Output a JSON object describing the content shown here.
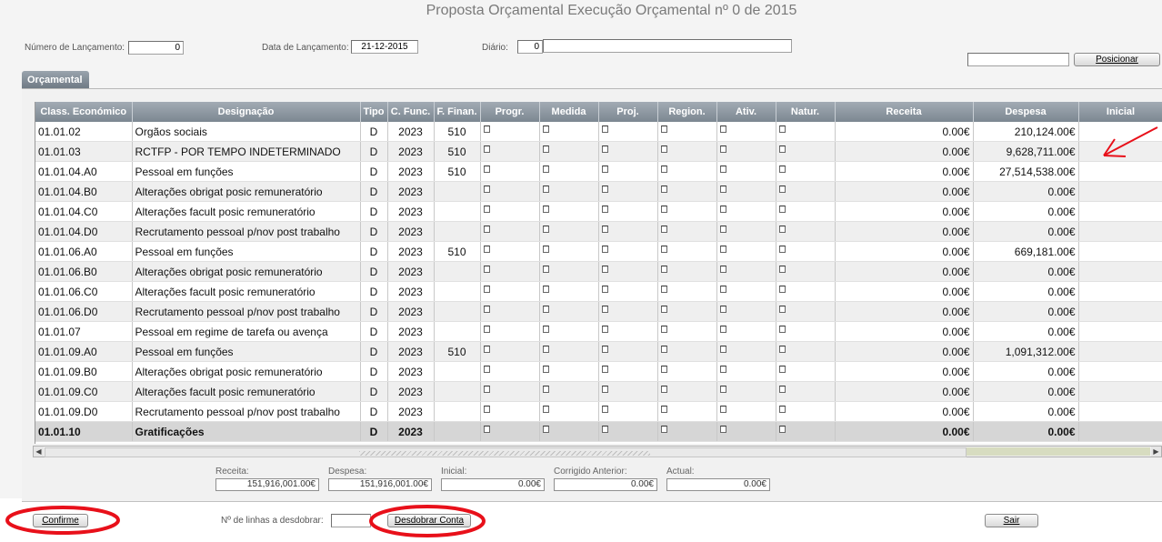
{
  "window": {
    "title": "Proposta Orçamental Execução Orçamental nº 0 de 2015"
  },
  "header": {
    "numero_label": "Número de Lançamento:",
    "numero_value": "0",
    "data_label": "Data de Lançamento:",
    "data_value": "21-12-2015",
    "diario_label": "Diário:",
    "diario_value": "0",
    "diario_desc": "",
    "position_input": "",
    "position_button": "Posicionar"
  },
  "tabs": [
    {
      "label": "Orçamental"
    }
  ],
  "grid": {
    "columns": [
      "Class. Económico",
      "Designação",
      "Tipo",
      "C. Func.",
      "F. Finan.",
      "Progr.",
      "Medida",
      "Proj.",
      "Region.",
      "Ativ.",
      "Natur.",
      "Receita",
      "Despesa",
      "Inicial"
    ],
    "rows": [
      {
        "code": "01.01.02",
        "desc": "Orgãos sociais",
        "tipo": "D",
        "func": "2023",
        "finan": "510",
        "receita": "0.00€",
        "despesa": "210,124.00€"
      },
      {
        "code": "01.01.03",
        "desc": "RCTFP - POR TEMPO INDETERMINADO",
        "tipo": "D",
        "func": "2023",
        "finan": "510",
        "receita": "0.00€",
        "despesa": "9,628,711.00€"
      },
      {
        "code": "01.01.04.A0",
        "desc": "Pessoal em funções",
        "tipo": "D",
        "func": "2023",
        "finan": "510",
        "receita": "0.00€",
        "despesa": "27,514,538.00€"
      },
      {
        "code": "01.01.04.B0",
        "desc": "Alterações obrigat posic remuneratório",
        "tipo": "D",
        "func": "2023",
        "finan": "",
        "receita": "0.00€",
        "despesa": "0.00€"
      },
      {
        "code": "01.01.04.C0",
        "desc": "Alterações facult posic remuneratório",
        "tipo": "D",
        "func": "2023",
        "finan": "",
        "receita": "0.00€",
        "despesa": "0.00€"
      },
      {
        "code": "01.01.04.D0",
        "desc": "Recrutamento pessoal p/nov post trabalho",
        "tipo": "D",
        "func": "2023",
        "finan": "",
        "receita": "0.00€",
        "despesa": "0.00€"
      },
      {
        "code": "01.01.06.A0",
        "desc": "Pessoal em funções",
        "tipo": "D",
        "func": "2023",
        "finan": "510",
        "receita": "0.00€",
        "despesa": "669,181.00€"
      },
      {
        "code": "01.01.06.B0",
        "desc": "Alterações obrigat posic remuneratório",
        "tipo": "D",
        "func": "2023",
        "finan": "",
        "receita": "0.00€",
        "despesa": "0.00€"
      },
      {
        "code": "01.01.06.C0",
        "desc": "Alterações facult posic remuneratório",
        "tipo": "D",
        "func": "2023",
        "finan": "",
        "receita": "0.00€",
        "despesa": "0.00€"
      },
      {
        "code": "01.01.06.D0",
        "desc": "Recrutamento pessoal p/nov post trabalho",
        "tipo": "D",
        "func": "2023",
        "finan": "",
        "receita": "0.00€",
        "despesa": "0.00€"
      },
      {
        "code": "01.01.07",
        "desc": "Pessoal em regime de tarefa ou avença",
        "tipo": "D",
        "func": "2023",
        "finan": "",
        "receita": "0.00€",
        "despesa": "0.00€"
      },
      {
        "code": "01.01.09.A0",
        "desc": "Pessoal em funções",
        "tipo": "D",
        "func": "2023",
        "finan": "510",
        "receita": "0.00€",
        "despesa": "1,091,312.00€"
      },
      {
        "code": "01.01.09.B0",
        "desc": "Alterações obrigat posic remuneratório",
        "tipo": "D",
        "func": "2023",
        "finan": "",
        "receita": "0.00€",
        "despesa": "0.00€"
      },
      {
        "code": "01.01.09.C0",
        "desc": "Alterações facult posic remuneratório",
        "tipo": "D",
        "func": "2023",
        "finan": "",
        "receita": "0.00€",
        "despesa": "0.00€"
      },
      {
        "code": "01.01.09.D0",
        "desc": "Recrutamento pessoal p/nov post trabalho",
        "tipo": "D",
        "func": "2023",
        "finan": "",
        "receita": "0.00€",
        "despesa": "0.00€"
      },
      {
        "code": "01.01.10",
        "desc": "Gratificações",
        "tipo": "D",
        "func": "2023",
        "finan": "",
        "receita": "0.00€",
        "despesa": "0.00€",
        "bold": true
      }
    ]
  },
  "totals": {
    "receita_label": "Receita:",
    "receita_value": "151,916,001.00€",
    "despesa_label": "Despesa:",
    "despesa_value": "151,916,001.00€",
    "inicial_label": "Inicial:",
    "inicial_value": "0.00€",
    "corrigido_label": "Corrigido Anterior:",
    "corrigido_value": "0.00€",
    "actual_label": "Actual:",
    "actual_value": "0.00€"
  },
  "footer": {
    "confirm_label": "Confirme",
    "lines_label": "Nº de linhas a desdobrar:",
    "lines_value": "",
    "split_label": "Desdobrar Conta",
    "exit_label": "Sair"
  },
  "annotations": {
    "highlight_color": "#e8101a",
    "arrow_color": "#e8101a"
  },
  "colors": {
    "header_bg": "#8a949e",
    "alt_row": "#efefef",
    "bold_row": "#d6d6d6"
  }
}
